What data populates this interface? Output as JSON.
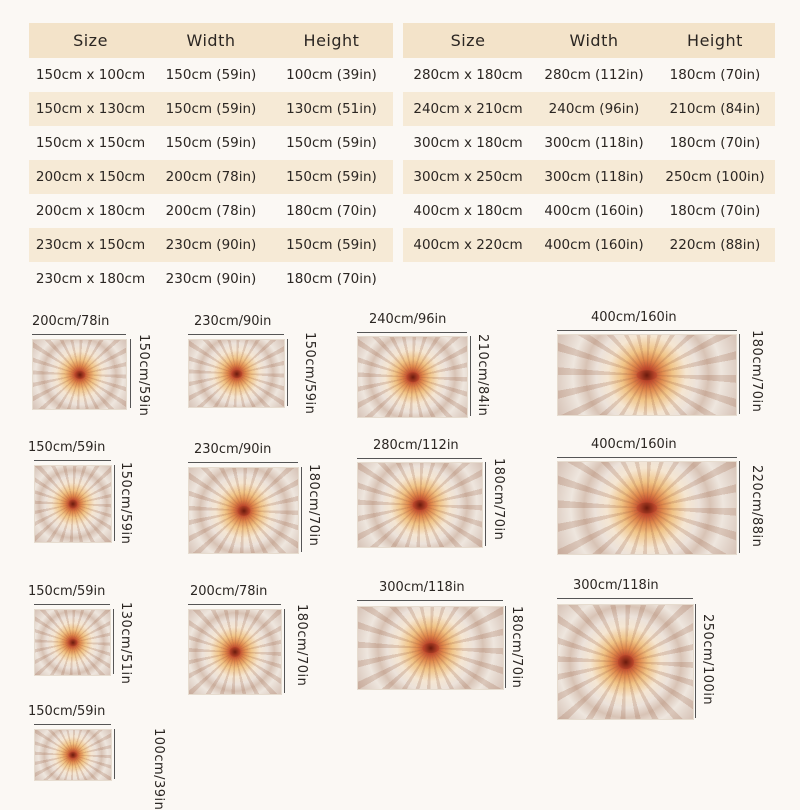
{
  "headers": {
    "size": "Size",
    "width": "Width",
    "height": "Height"
  },
  "left_rows": [
    {
      "size": "150cm x 100cm",
      "width": "150cm (59in)",
      "height": "100cm (39in)"
    },
    {
      "size": "150cm x 130cm",
      "width": "150cm (59in)",
      "height": "130cm (51in)"
    },
    {
      "size": "150cm x 150cm",
      "width": "150cm (59in)",
      "height": "150cm (59in)"
    },
    {
      "size": "200cm x 150cm",
      "width": "200cm (78in)",
      "height": "150cm (59in)"
    },
    {
      "size": "200cm x 180cm",
      "width": "200cm (78in)",
      "height": "180cm (70in)"
    },
    {
      "size": "230cm x 150cm",
      "width": "230cm (90in)",
      "height": "150cm (59in)"
    },
    {
      "size": "230cm x 180cm",
      "width": "230cm (90in)",
      "height": "180cm (70in)"
    }
  ],
  "right_rows": [
    {
      "size": "280cm x 180cm",
      "width": "280cm (112in)",
      "height": "180cm (70in)"
    },
    {
      "size": "240cm x 210cm",
      "width": "240cm (96in)",
      "height": "210cm (84in)"
    },
    {
      "size": "300cm x 180cm",
      "width": "300cm (118in)",
      "height": "180cm (70in)"
    },
    {
      "size": "300cm x 250cm",
      "width": "300cm (118in)",
      "height": "250cm (100in)"
    },
    {
      "size": "400cm x 180cm",
      "width": "400cm (160in)",
      "height": "180cm (70in)"
    },
    {
      "size": "400cm x 220cm",
      "width": "400cm (160in)",
      "height": "220cm (88in)"
    }
  ],
  "previews": [
    {
      "w": "200cm/78in",
      "h": "150cm/59in"
    },
    {
      "w": "230cm/90in",
      "h": "150cm/59in"
    },
    {
      "w": "240cm/96in",
      "h": "210cm/84in"
    },
    {
      "w": "400cm/160in",
      "h": "180cm/70in"
    },
    {
      "w": "150cm/59in",
      "h": "150cm/59in"
    },
    {
      "w": "230cm/90in",
      "h": "180cm/70in"
    },
    {
      "w": "280cm/112in",
      "h": "180cm/70in"
    },
    {
      "w": "400cm/160in",
      "h": "220cm/88in"
    },
    {
      "w": "150cm/59in",
      "h": "130cm/51in"
    },
    {
      "w": "200cm/78in",
      "h": "180cm/70in"
    },
    {
      "w": "300cm/118in",
      "h": "180cm/70in"
    },
    {
      "w": "300cm/118in",
      "h": "250cm/100in"
    },
    {
      "w": "150cm/59in",
      "h": "100cm/39in"
    }
  ],
  "colors": {
    "header_bg": "#f3e3c9",
    "row_shade": "#f6ead6",
    "mandala_center": "#c0462a"
  }
}
